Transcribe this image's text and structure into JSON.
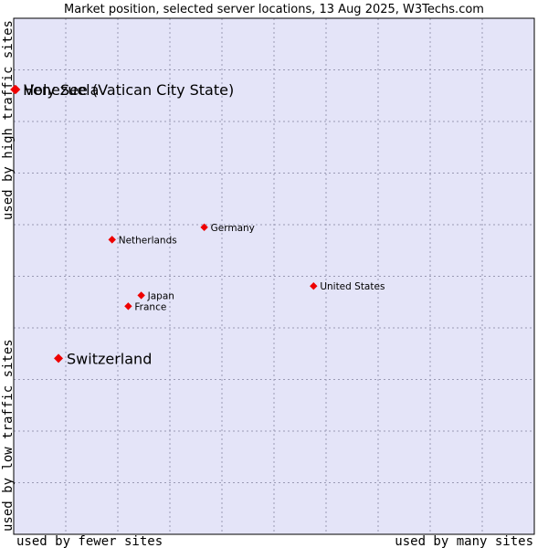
{
  "chart_data": {
    "type": "scatter",
    "title": "Market position, selected server locations, 13 Aug 2025, W3Techs.com",
    "xlabel_left": "used by fewer sites",
    "xlabel_right": "used by many sites",
    "ylabel_bottom": "used by low traffic sites",
    "ylabel_top": "used by high traffic sites",
    "xlim": [
      0,
      100
    ],
    "ylim": [
      0,
      100
    ],
    "grid": true,
    "colors": {
      "plot_background": "#e4e4f8",
      "point": "#ee0000",
      "grid": "#9a9ab4",
      "border": "#000000"
    },
    "points": [
      {
        "label": "Holy See (Vatican City State)",
        "x": 0.2,
        "y": 86.2,
        "size": "large"
      },
      {
        "label": "Venezuela",
        "x": 0.4,
        "y": 86.2,
        "size": "large"
      },
      {
        "label": "Switzerland",
        "x": 8.6,
        "y": 34.1,
        "size": "large"
      },
      {
        "label": "Netherlands",
        "x": 18.9,
        "y": 57.1,
        "size": "small"
      },
      {
        "label": "Germany",
        "x": 36.6,
        "y": 59.5,
        "size": "small"
      },
      {
        "label": "Japan",
        "x": 24.5,
        "y": 46.3,
        "size": "small"
      },
      {
        "label": "France",
        "x": 22.0,
        "y": 44.2,
        "size": "small"
      },
      {
        "label": "United States",
        "x": 57.6,
        "y": 48.1,
        "size": "small"
      }
    ]
  }
}
